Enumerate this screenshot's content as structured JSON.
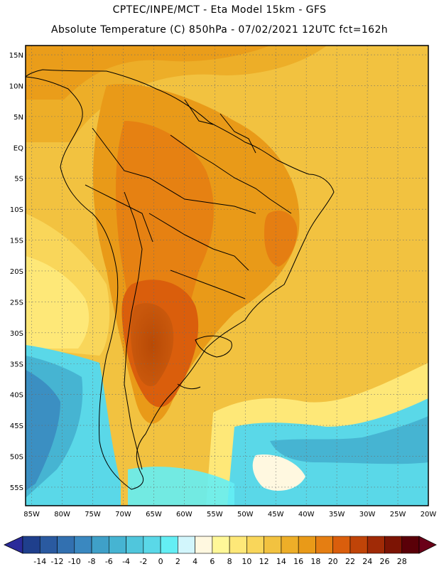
{
  "header": {
    "title_line1": "CPTEC/INPE/MCT  -  Eta Model 15km  -  GFS",
    "title_line2": "Absolute Temperature (C) 850hPa - 07/02/2021 12UTC fct=162h"
  },
  "map": {
    "lat_labels": [
      "15N",
      "10N",
      "5N",
      "EQ",
      "5S",
      "10S",
      "15S",
      "20S",
      "25S",
      "30S",
      "35S",
      "40S",
      "45S",
      "50S",
      "55S"
    ],
    "lat_values": [
      15,
      10,
      5,
      0,
      -5,
      -10,
      -15,
      -20,
      -25,
      -30,
      -35,
      -40,
      -45,
      -50,
      -55
    ],
    "lon_labels": [
      "85W",
      "80W",
      "75W",
      "70W",
      "65W",
      "60W",
      "55W",
      "50W",
      "45W",
      "40W",
      "35W",
      "30W",
      "25W",
      "20W"
    ],
    "lon_values": [
      -85,
      -80,
      -75,
      -70,
      -65,
      -60,
      -55,
      -50,
      -45,
      -40,
      -35,
      -30,
      -25,
      -20
    ],
    "lat_range": [
      -58,
      16.5
    ],
    "lon_range": [
      -86,
      -20
    ]
  },
  "colorbar": {
    "labels": [
      "-14",
      "-12",
      "-10",
      "-8",
      "-6",
      "-4",
      "-2",
      "0",
      "2",
      "4",
      "6",
      "8",
      "10",
      "12",
      "14",
      "16",
      "18",
      "20",
      "22",
      "24",
      "26",
      "28"
    ],
    "colors": [
      "#1f3f8c",
      "#2a5aa0",
      "#3270b0",
      "#3a88c0",
      "#3fa0c8",
      "#46b4d2",
      "#50c6dc",
      "#5ad8e8",
      "#64eef4",
      "#d2f6fc",
      "#fff8e0",
      "#fff898",
      "#fee878",
      "#f9d65a",
      "#f2c240",
      "#edae28",
      "#e99a18",
      "#e57e12",
      "#da5e0c",
      "#c04408",
      "#a02a06",
      "#7c1404",
      "#5a0008"
    ]
  }
}
